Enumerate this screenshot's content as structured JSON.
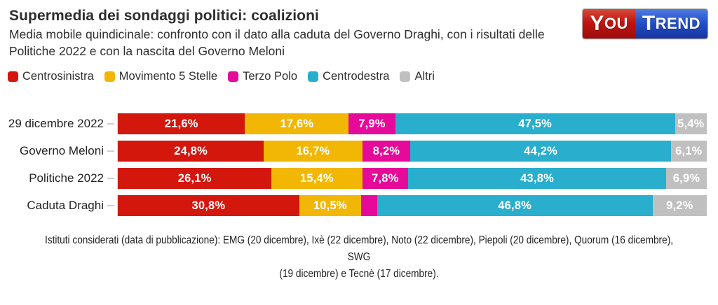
{
  "header": {
    "title": "Supermedia dei sondaggi politici: coalizioni",
    "subtitle": "Media mobile quindicinale: confronto con il dato alla caduta del Governo Draghi, con i risultati delle Politiche 2022 e con la nascita del Governo Meloni"
  },
  "logo": {
    "you_initial": "Y",
    "you_rest": "OU",
    "trend_initial": "T",
    "trend_rest": "REND",
    "you_color": "#c01410",
    "trend_color": "#2350c9"
  },
  "legend": {
    "items": [
      {
        "label": "Centrosinistra",
        "color": "#d3170d"
      },
      {
        "label": "Movimento 5 Stelle",
        "color": "#f2b705"
      },
      {
        "label": "Terzo Polo",
        "color": "#e50a99"
      },
      {
        "label": "Centrodestra",
        "color": "#29aece"
      },
      {
        "label": "Altri",
        "color": "#c0c0c0"
      }
    ]
  },
  "chart_data": {
    "type": "bar",
    "orientation": "horizontal-stacked",
    "title": "Supermedia dei sondaggi politici: coalizioni",
    "categories": [
      "29 dicembre 2022",
      "Governo Meloni",
      "Politiche 2022",
      "Caduta Draghi"
    ],
    "series": [
      {
        "name": "Centrosinistra",
        "color": "#d3170d",
        "values": [
          21.6,
          24.8,
          26.1,
          30.8
        ]
      },
      {
        "name": "Movimento 5 Stelle",
        "color": "#f2b705",
        "values": [
          17.6,
          16.7,
          15.4,
          10.5
        ]
      },
      {
        "name": "Terzo Polo",
        "color": "#e50a99",
        "values": [
          7.9,
          8.2,
          7.8,
          2.7
        ]
      },
      {
        "name": "Centrodestra",
        "color": "#29aece",
        "values": [
          47.5,
          44.2,
          43.8,
          46.8
        ]
      },
      {
        "name": "Altri",
        "color": "#c0c0c0",
        "values": [
          5.4,
          6.1,
          6.9,
          9.2
        ]
      }
    ],
    "value_labels": [
      [
        "21,6%",
        "17,6%",
        "7,9%",
        "47,5%",
        "5,4%"
      ],
      [
        "24,8%",
        "16,7%",
        "8,2%",
        "44,2%",
        "6,1%"
      ],
      [
        "26,1%",
        "15,4%",
        "7,8%",
        "43,8%",
        "6,9%"
      ],
      [
        "30,8%",
        "10,5%",
        "",
        "46,8%",
        "9,2%"
      ]
    ],
    "xlim": [
      0,
      100
    ],
    "grid": false,
    "legend_position": "top-left"
  },
  "footer": {
    "line1": "Istituti considerati (data di pubblicazione): EMG (20 dicembre), Ixè (22 dicembre), Noto (22 dicembre), Piepoli (20 dicembre), Quorum (16 dicembre), SWG",
    "line2": "(19 dicembre) e Tecnè (17 dicembre)."
  }
}
